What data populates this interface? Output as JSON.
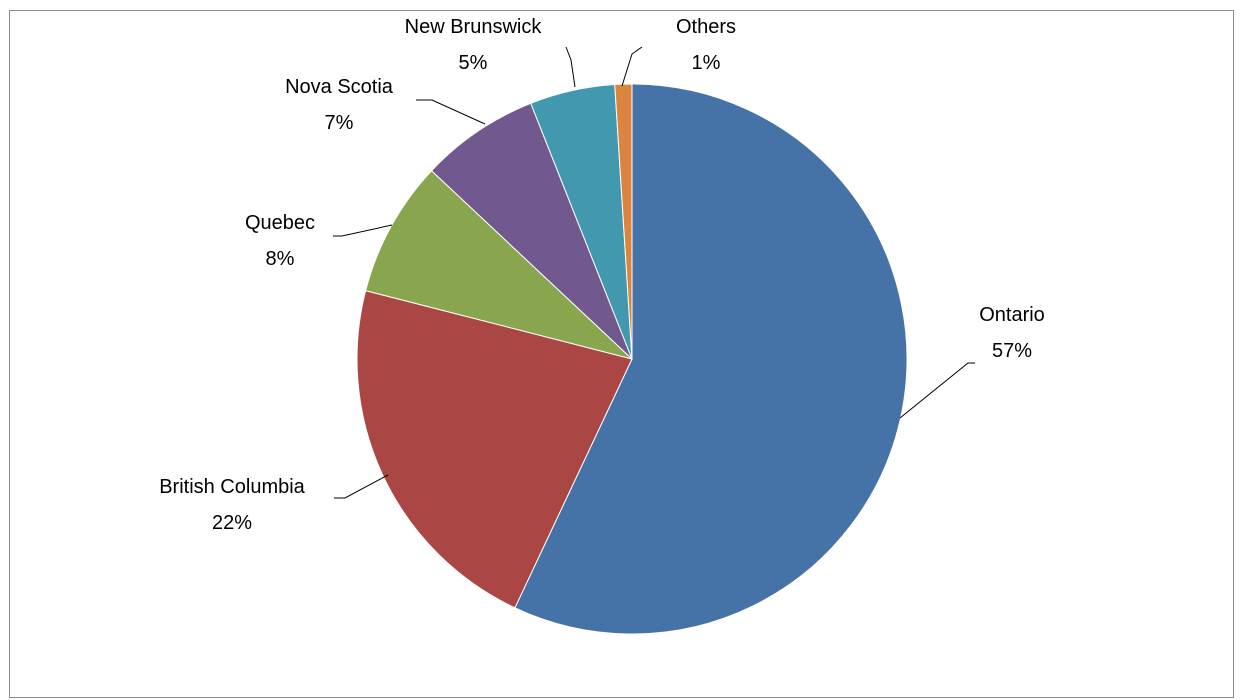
{
  "chart_data": {
    "type": "pie",
    "title": "",
    "categories": [
      "Ontario",
      "British Columbia",
      "Quebec",
      "Nova Scotia",
      "New Brunswick",
      "Others"
    ],
    "values": [
      57,
      22,
      8,
      7,
      5,
      1
    ],
    "value_labels": [
      "57%",
      "22%",
      "8%",
      "7%",
      "5%",
      "1%"
    ],
    "colors": [
      "#4572A7",
      "#AA4643",
      "#89A54E",
      "#71588F",
      "#4198AF",
      "#DB843D"
    ],
    "start": "12 o'clock",
    "direction": "clockwise",
    "legend": "none (data labels with leader lines)"
  }
}
